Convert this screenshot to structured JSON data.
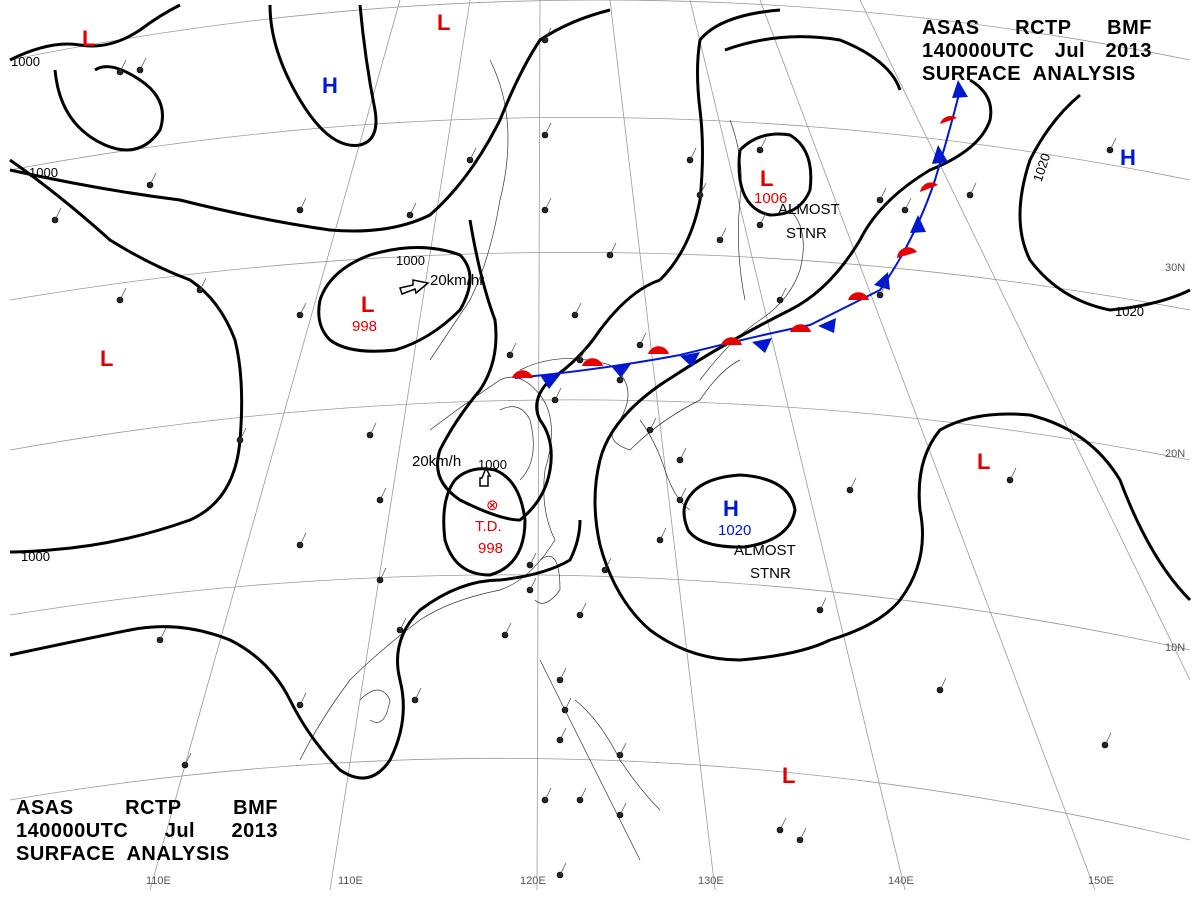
{
  "header": {
    "line1": [
      "ASAS",
      "RCTP",
      "BMF"
    ],
    "line2": [
      "140000UTC",
      "Jul",
      "2013"
    ],
    "line3": "SURFACE  ANALYSIS"
  },
  "longitude_labels": [
    "110E",
    "120E",
    "130E",
    "140E",
    "150E"
  ],
  "latitude_labels": [
    "30N",
    "20N",
    "10N"
  ],
  "isobar_labels": [
    "1000",
    "1000",
    "1000",
    "1000",
    "1000",
    "1020",
    "1020"
  ],
  "pressure_systems": [
    {
      "type": "L",
      "value": ""
    },
    {
      "type": "L",
      "value": ""
    },
    {
      "type": "H",
      "value": ""
    },
    {
      "type": "L",
      "value": "998"
    },
    {
      "type": "L",
      "value": ""
    },
    {
      "type": "L",
      "value": "1006"
    },
    {
      "type": "H",
      "value": ""
    },
    {
      "type": "H",
      "value": "1020"
    },
    {
      "type": "L",
      "value": ""
    },
    {
      "type": "L",
      "value": ""
    },
    {
      "type": "L",
      "value": ""
    }
  ],
  "tropical_depression": {
    "label": "T.D.",
    "value": "998",
    "symbol": "⊗"
  },
  "annotations": {
    "motion_1": "20km/hr",
    "motion_2": "20km/h",
    "stnr_1": [
      "ALMOST",
      "STNR"
    ],
    "stnr_2": [
      "ALMOST",
      "STNR"
    ]
  },
  "front": {
    "type": "stationary",
    "warm_color": "#e60000",
    "cold_color": "#0018d0"
  },
  "colors": {
    "low": "#e00000",
    "high": "#0018d0",
    "isobar": "#000000",
    "grid": "#9a9a9a"
  }
}
